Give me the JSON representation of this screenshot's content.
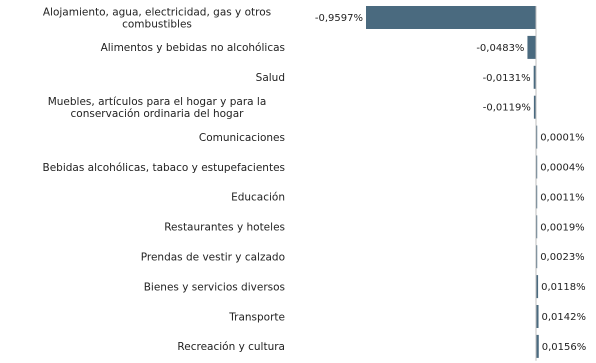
{
  "chart_data": {
    "type": "bar",
    "orientation": "horizontal",
    "categories": [
      [
        "Alojamiento, agua, electricidad, gas y otros",
        "combustibles"
      ],
      [
        "Alimentos y bebidas no alcohólicas"
      ],
      [
        "Salud"
      ],
      [
        "Muebles, artículos para el hogar y para la",
        "conservación ordinaria del hogar"
      ],
      [
        "Comunicaciones"
      ],
      [
        "Bebidas alcohólicas, tabaco y estupefacientes"
      ],
      [
        "Educación"
      ],
      [
        "Restaurantes y hoteles"
      ],
      [
        "Prendas de vestir y calzado"
      ],
      [
        "Bienes y servicios diversos"
      ],
      [
        "Transporte"
      ],
      [
        "Recreación y cultura"
      ]
    ],
    "values": [
      -0.9597,
      -0.0483,
      -0.0131,
      -0.0119,
      0.0001,
      0.0004,
      0.0011,
      0.0019,
      0.0023,
      0.0118,
      0.0142,
      0.0156
    ],
    "value_labels": [
      "-0,9597%",
      "-0,0483%",
      "-0,0131%",
      "-0,0119%",
      "0,0001%",
      "0,0004%",
      "0,0011%",
      "0,0019%",
      "0,0023%",
      "0,0118%",
      "0,0142%",
      "0,0156%"
    ],
    "unit": "%",
    "bar_color": "#4a6a7f",
    "axis_line_color": "#bfbfbf",
    "title": "",
    "xlabel": "",
    "ylabel": "",
    "xlim": [
      -0.9597,
      0.0156
    ],
    "grid": false,
    "legend": "none"
  }
}
